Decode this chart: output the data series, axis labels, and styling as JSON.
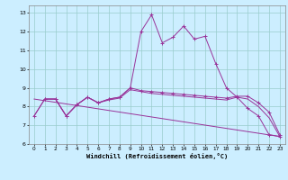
{
  "title": "",
  "xlabel": "Windchill (Refroidissement éolien,°C)",
  "background_color": "#cceeff",
  "grid_color": "#99cccc",
  "line_color": "#993399",
  "xlim": [
    -0.5,
    23.5
  ],
  "ylim": [
    6.0,
    13.4
  ],
  "yticks": [
    6,
    7,
    8,
    9,
    10,
    11,
    12,
    13
  ],
  "xticks": [
    0,
    1,
    2,
    3,
    4,
    5,
    6,
    7,
    8,
    9,
    10,
    11,
    12,
    13,
    14,
    15,
    16,
    17,
    18,
    19,
    20,
    21,
    22,
    23
  ],
  "line1_x": [
    1,
    2,
    3,
    4,
    5,
    6,
    7,
    8,
    9,
    10,
    11,
    12,
    13,
    14,
    15,
    16,
    17,
    18,
    19,
    20,
    21,
    22,
    23
  ],
  "line1_y": [
    8.4,
    8.4,
    7.5,
    8.1,
    8.5,
    8.2,
    8.4,
    8.5,
    9.0,
    12.0,
    12.9,
    11.4,
    11.7,
    12.3,
    11.6,
    11.75,
    10.3,
    9.0,
    8.5,
    7.9,
    7.5,
    6.5,
    6.4
  ],
  "line2_x": [
    0,
    1,
    2,
    3,
    4,
    5,
    6,
    7,
    8,
    9,
    10,
    11,
    12,
    13,
    14,
    15,
    16,
    17,
    18,
    19,
    20,
    21,
    22,
    23
  ],
  "line2_y": [
    7.5,
    8.4,
    8.4,
    7.5,
    8.1,
    8.5,
    8.2,
    8.4,
    8.5,
    9.0,
    8.85,
    8.8,
    8.75,
    8.7,
    8.65,
    8.6,
    8.55,
    8.5,
    8.45,
    8.55,
    8.55,
    8.2,
    7.7,
    6.5
  ],
  "line3_x": [
    0,
    1,
    2,
    3,
    4,
    5,
    6,
    7,
    8,
    9,
    10,
    11,
    12,
    13,
    14,
    15,
    16,
    17,
    18,
    19,
    20,
    21,
    22,
    23
  ],
  "line3_y": [
    7.5,
    8.4,
    8.4,
    7.5,
    8.1,
    8.5,
    8.2,
    8.35,
    8.45,
    8.9,
    8.8,
    8.7,
    8.65,
    8.6,
    8.55,
    8.5,
    8.45,
    8.4,
    8.35,
    8.5,
    8.4,
    8.0,
    7.4,
    6.4
  ],
  "line4_x": [
    0,
    23
  ],
  "line4_y": [
    8.4,
    6.4
  ]
}
